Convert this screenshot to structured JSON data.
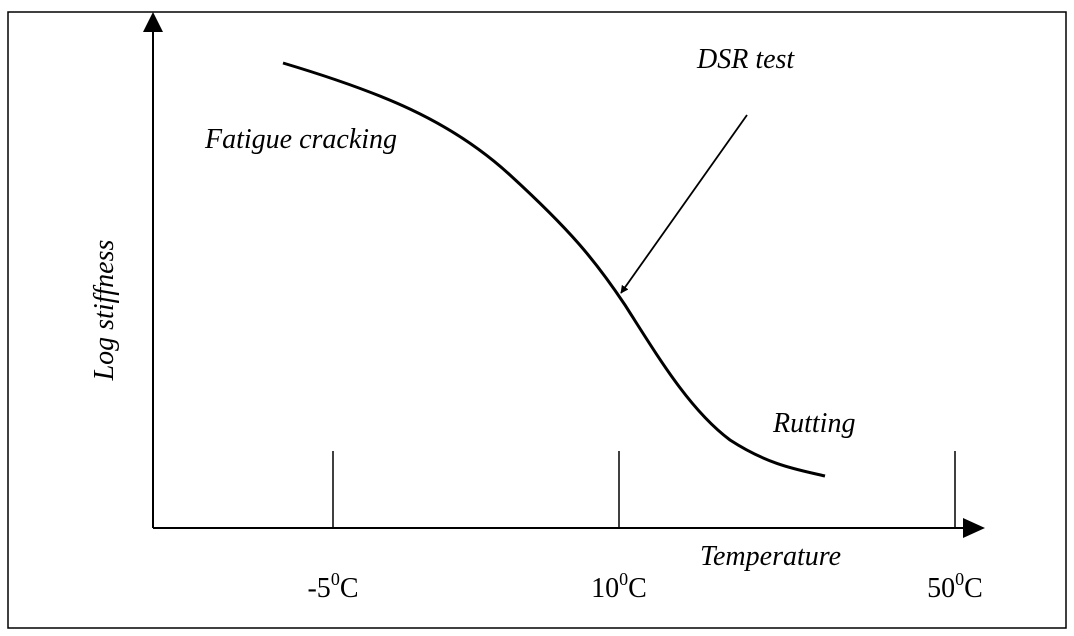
{
  "annotations": {
    "top": "DSR test",
    "left": "Fatigue cracking",
    "right": "Rutting"
  },
  "axes": {
    "y_label": "Log stiffness",
    "x_label": "Temperature"
  },
  "x_tick_labels": [
    {
      "number": "-5",
      "superscript": "0",
      "unit": "C"
    },
    {
      "number": "10",
      "superscript": "0",
      "unit": "C"
    },
    {
      "number": "50",
      "superscript": "0",
      "unit": "C"
    }
  ]
}
